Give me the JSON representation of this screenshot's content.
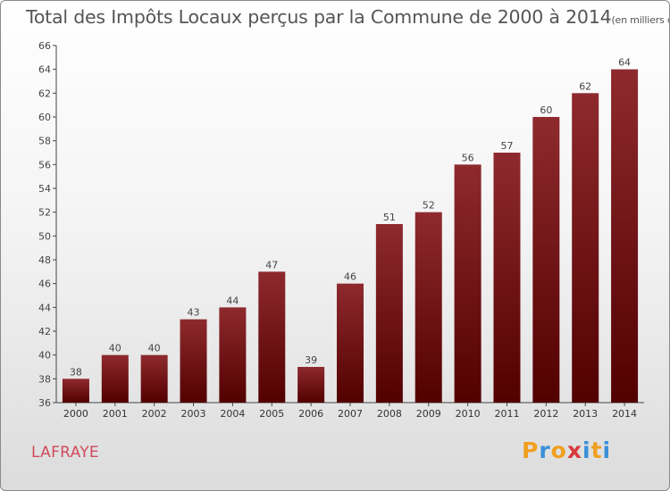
{
  "header": {
    "title": "Total des Impôts Locaux perçus par la Commune de 2000 à 2014",
    "unit": "(en milliers d'€)"
  },
  "footer": {
    "commune": "LAFRAYE",
    "logo_letters": [
      "P",
      "r",
      "o",
      "x",
      "i",
      "t",
      "i"
    ],
    "logo_colors": [
      "#f0a020",
      "#3a8fd8",
      "#f0a020",
      "#d83a3a",
      "#3a8fd8",
      "#f0a020",
      "#3a8fd8"
    ]
  },
  "chart_data": {
    "type": "bar",
    "categories": [
      "2000",
      "2001",
      "2002",
      "2003",
      "2004",
      "2005",
      "2006",
      "2007",
      "2008",
      "2009",
      "2010",
      "2011",
      "2012",
      "2013",
      "2014"
    ],
    "values": [
      38,
      40,
      40,
      43,
      44,
      47,
      39,
      46,
      51,
      52,
      56,
      57,
      60,
      62,
      64
    ],
    "ylim": [
      36,
      66
    ],
    "yticks": [
      36,
      38,
      40,
      42,
      44,
      46,
      48,
      50,
      52,
      54,
      56,
      58,
      60,
      62,
      64,
      66
    ],
    "grid": false,
    "bar_color": "#7a1a1c"
  }
}
